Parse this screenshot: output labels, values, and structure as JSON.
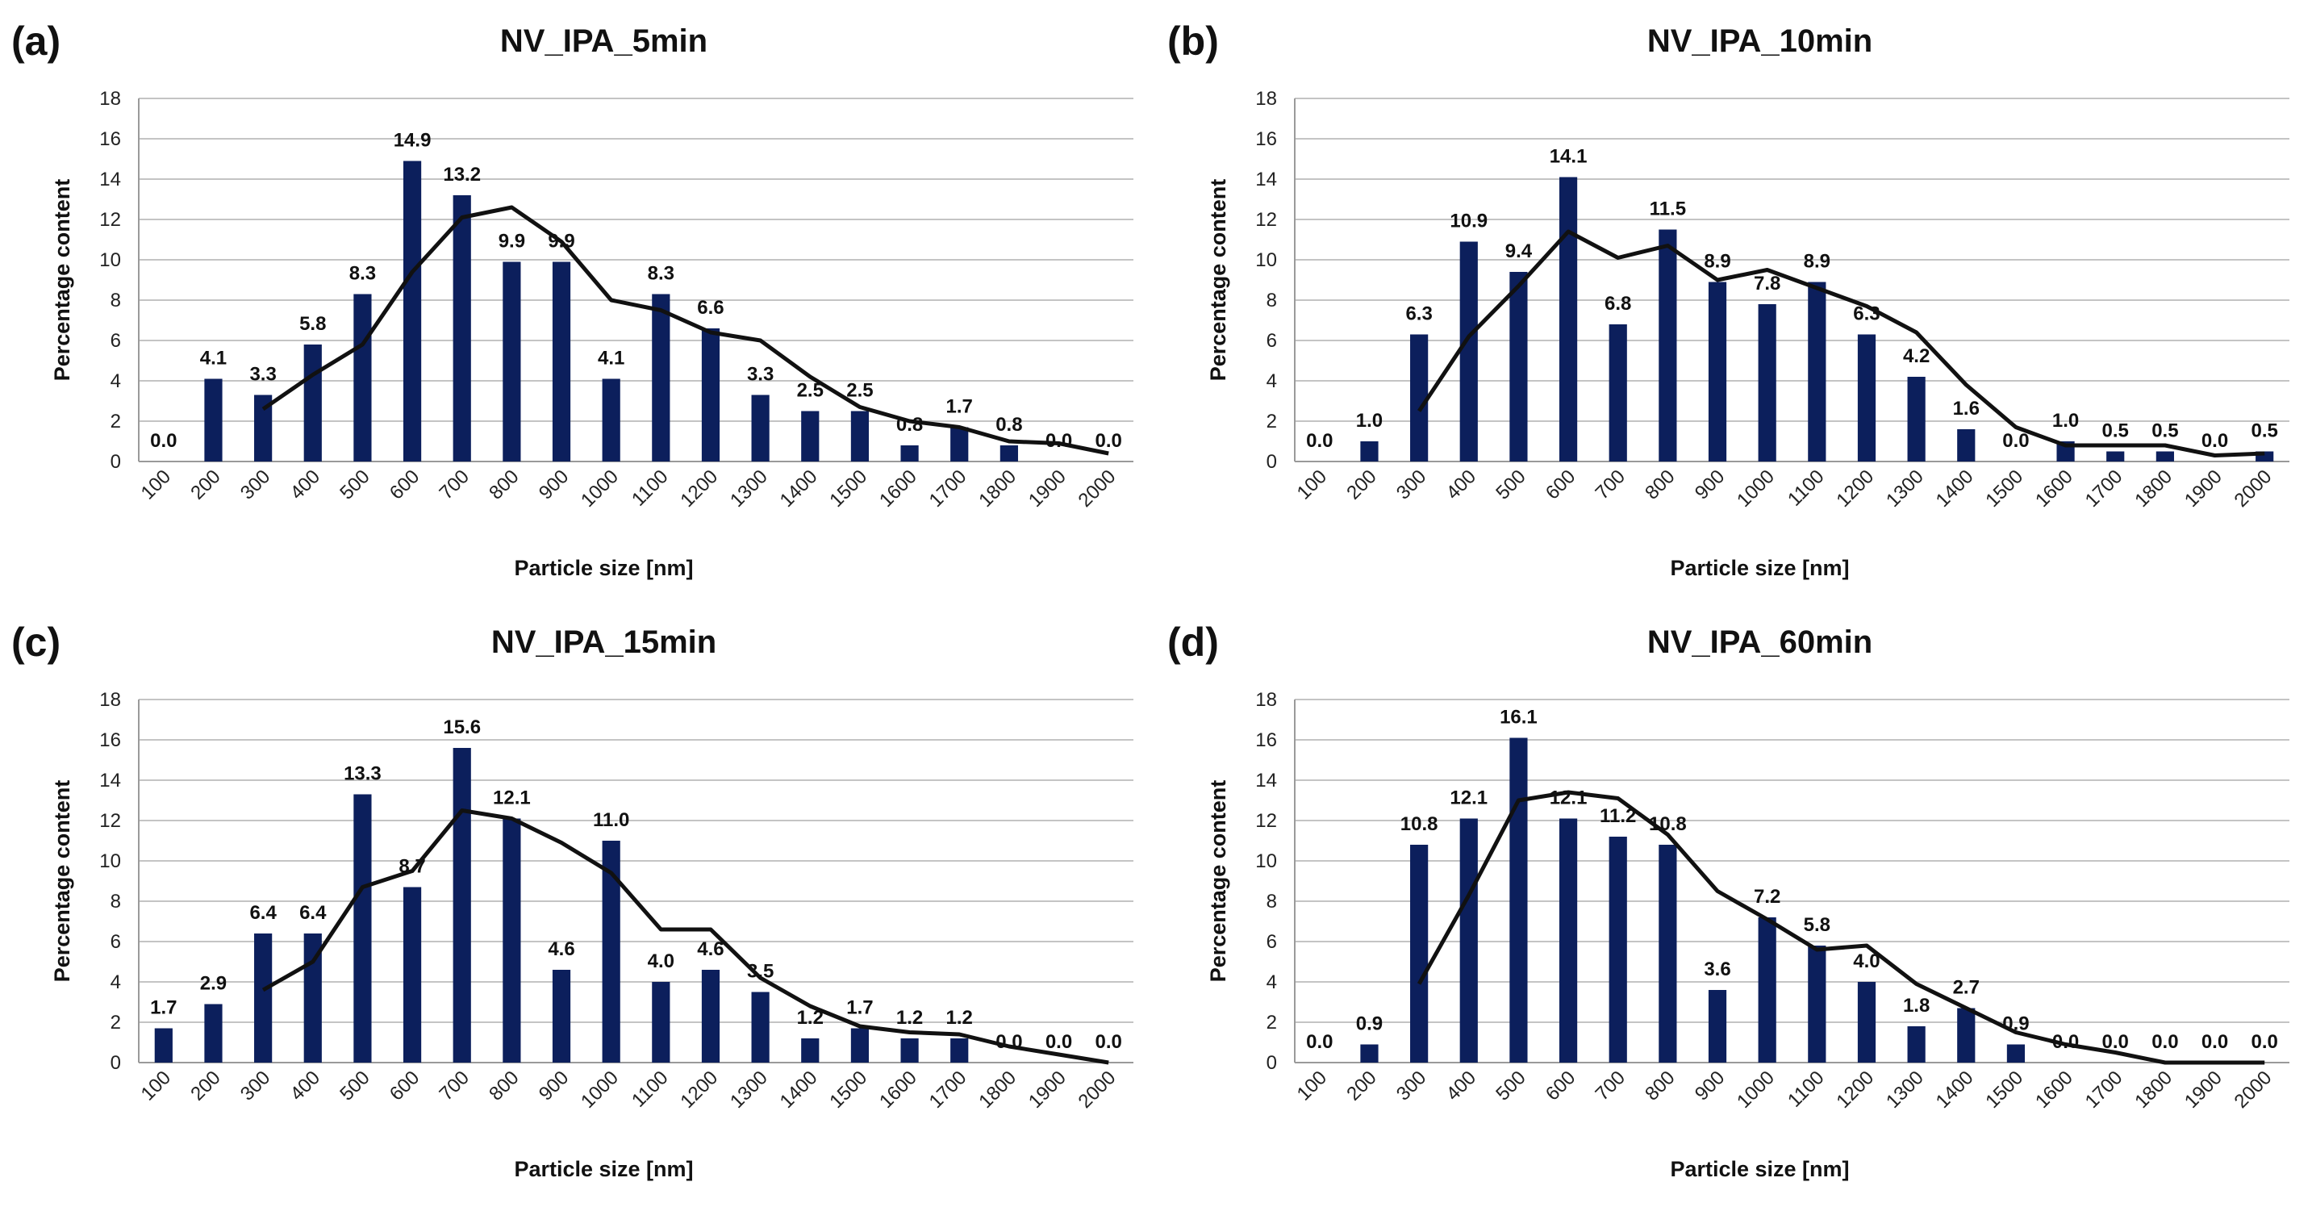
{
  "chart_data": [
    {
      "panel": "(a)",
      "type": "bar",
      "title": "NV_IPA_5min",
      "xlabel": "Particle size [nm]",
      "ylabel": "Percentage content",
      "ylim": [
        0,
        18
      ],
      "yticks": [
        0,
        2,
        4,
        6,
        8,
        10,
        12,
        14,
        16,
        18
      ],
      "categories": [
        "100",
        "200",
        "300",
        "400",
        "500",
        "600",
        "700",
        "800",
        "900",
        "1000",
        "1100",
        "1200",
        "1300",
        "1400",
        "1500",
        "1600",
        "1700",
        "1800",
        "1900",
        "2000"
      ],
      "values": [
        0.0,
        4.1,
        3.3,
        5.8,
        8.3,
        14.9,
        13.2,
        9.9,
        9.9,
        4.1,
        8.3,
        6.6,
        3.3,
        2.5,
        2.5,
        0.8,
        1.7,
        0.8,
        0.0,
        0.0
      ],
      "labels": [
        "0.0",
        "4.1",
        "3.3",
        "5.8",
        "8.3",
        "14.9",
        "13.2",
        "9.9",
        "9.9",
        "4.1",
        "8.3",
        "6.6",
        "3.3",
        "2.5",
        "2.5",
        "0.8",
        "1.7",
        "0.8",
        "0.0",
        "0.0"
      ],
      "trend": [
        null,
        null,
        2.6,
        4.3,
        5.8,
        9.4,
        12.1,
        12.6,
        10.9,
        8.0,
        7.5,
        6.4,
        6.0,
        4.2,
        2.7,
        2.0,
        1.7,
        1.0,
        0.9,
        0.4
      ],
      "bar_color": "#0c1f5c",
      "grid": true,
      "legend": "none"
    },
    {
      "panel": "(b)",
      "type": "bar",
      "title": "NV_IPA_10min",
      "xlabel": "Particle size [nm]",
      "ylabel": "Percentage content",
      "ylim": [
        0,
        18
      ],
      "yticks": [
        0,
        2,
        4,
        6,
        8,
        10,
        12,
        14,
        16,
        18
      ],
      "categories": [
        "100",
        "200",
        "300",
        "400",
        "500",
        "600",
        "700",
        "800",
        "900",
        "1000",
        "1100",
        "1200",
        "1300",
        "1400",
        "1500",
        "1600",
        "1700",
        "1800",
        "1900",
        "2000"
      ],
      "values": [
        0.0,
        1.0,
        6.3,
        10.9,
        9.4,
        14.1,
        6.8,
        11.5,
        8.9,
        7.8,
        8.9,
        6.3,
        4.2,
        1.6,
        0.0,
        1.0,
        0.5,
        0.5,
        0.0,
        0.5
      ],
      "labels": [
        "0.0",
        "1.0",
        "6.3",
        "10.9",
        "9.4",
        "14.1",
        "6.8",
        "11.5",
        "8.9",
        "7.8",
        "8.9",
        "6.3",
        "4.2",
        "1.6",
        "0.0",
        "1.0",
        "0.5",
        "0.5",
        "0.0",
        "0.5"
      ],
      "trend": [
        null,
        null,
        2.5,
        6.2,
        8.7,
        11.4,
        10.1,
        10.7,
        9.0,
        9.5,
        8.6,
        7.7,
        6.4,
        3.8,
        1.7,
        0.8,
        0.8,
        0.8,
        0.3,
        0.4
      ],
      "bar_color": "#0c1f5c",
      "grid": true,
      "legend": "none"
    },
    {
      "panel": "(c)",
      "type": "bar",
      "title": "NV_IPA_15min",
      "xlabel": "Particle size [nm]",
      "ylabel": "Percentage content",
      "ylim": [
        0,
        18
      ],
      "yticks": [
        0,
        2,
        4,
        6,
        8,
        10,
        12,
        14,
        16,
        18
      ],
      "categories": [
        "100",
        "200",
        "300",
        "400",
        "500",
        "600",
        "700",
        "800",
        "900",
        "1000",
        "1100",
        "1200",
        "1300",
        "1400",
        "1500",
        "1600",
        "1700",
        "1800",
        "1900",
        "2000"
      ],
      "values": [
        1.7,
        2.9,
        6.4,
        6.4,
        13.3,
        8.7,
        15.6,
        12.1,
        4.6,
        11.0,
        4.0,
        4.6,
        3.5,
        1.2,
        1.7,
        1.2,
        1.2,
        0.0,
        0.0,
        0.0
      ],
      "labels": [
        "1.7",
        "2.9",
        "6.4",
        "6.4",
        "13.3",
        "8.7",
        "15.6",
        "12.1",
        "4.6",
        "11.0",
        "4.0",
        "4.6",
        "3.5",
        "1.2",
        "1.7",
        "1.2",
        "1.2",
        "0.0",
        "0.0",
        "0.0"
      ],
      "trend": [
        null,
        null,
        3.6,
        5.0,
        8.7,
        9.5,
        12.5,
        12.1,
        10.9,
        9.4,
        6.6,
        6.6,
        4.2,
        2.8,
        1.8,
        1.5,
        1.4,
        0.8,
        0.4,
        0.0
      ],
      "bar_color": "#0c1f5c",
      "grid": true,
      "legend": "none"
    },
    {
      "panel": "(d)",
      "type": "bar",
      "title": "NV_IPA_60min",
      "xlabel": "Particle size [nm]",
      "ylabel": "Percentage content",
      "ylim": [
        0,
        18
      ],
      "yticks": [
        0,
        2,
        4,
        6,
        8,
        10,
        12,
        14,
        16,
        18
      ],
      "categories": [
        "100",
        "200",
        "300",
        "400",
        "500",
        "600",
        "700",
        "800",
        "900",
        "1000",
        "1100",
        "1200",
        "1300",
        "1400",
        "1500",
        "1600",
        "1700",
        "1800",
        "1900",
        "2000"
      ],
      "values": [
        0.0,
        0.9,
        10.8,
        12.1,
        16.1,
        12.1,
        11.2,
        10.8,
        3.6,
        7.2,
        5.8,
        4.0,
        1.8,
        2.7,
        0.9,
        0.0,
        0.0,
        0.0,
        0.0,
        0.0
      ],
      "labels": [
        "0.0",
        "0.9",
        "10.8",
        "12.1",
        "16.1",
        "12.1",
        "11.2",
        "10.8",
        "3.6",
        "7.2",
        "5.8",
        "4.0",
        "1.8",
        "2.7",
        "0.9",
        "0.0",
        "0.0",
        "0.0",
        "0.0",
        "0.0"
      ],
      "trend": [
        null,
        null,
        3.9,
        8.3,
        13.0,
        13.4,
        13.1,
        11.3,
        8.5,
        7.1,
        5.6,
        5.8,
        3.9,
        2.7,
        1.5,
        0.9,
        0.5,
        0.0,
        0.0,
        0.0
      ],
      "bar_color": "#0c1f5c",
      "grid": true,
      "legend": "none"
    }
  ]
}
